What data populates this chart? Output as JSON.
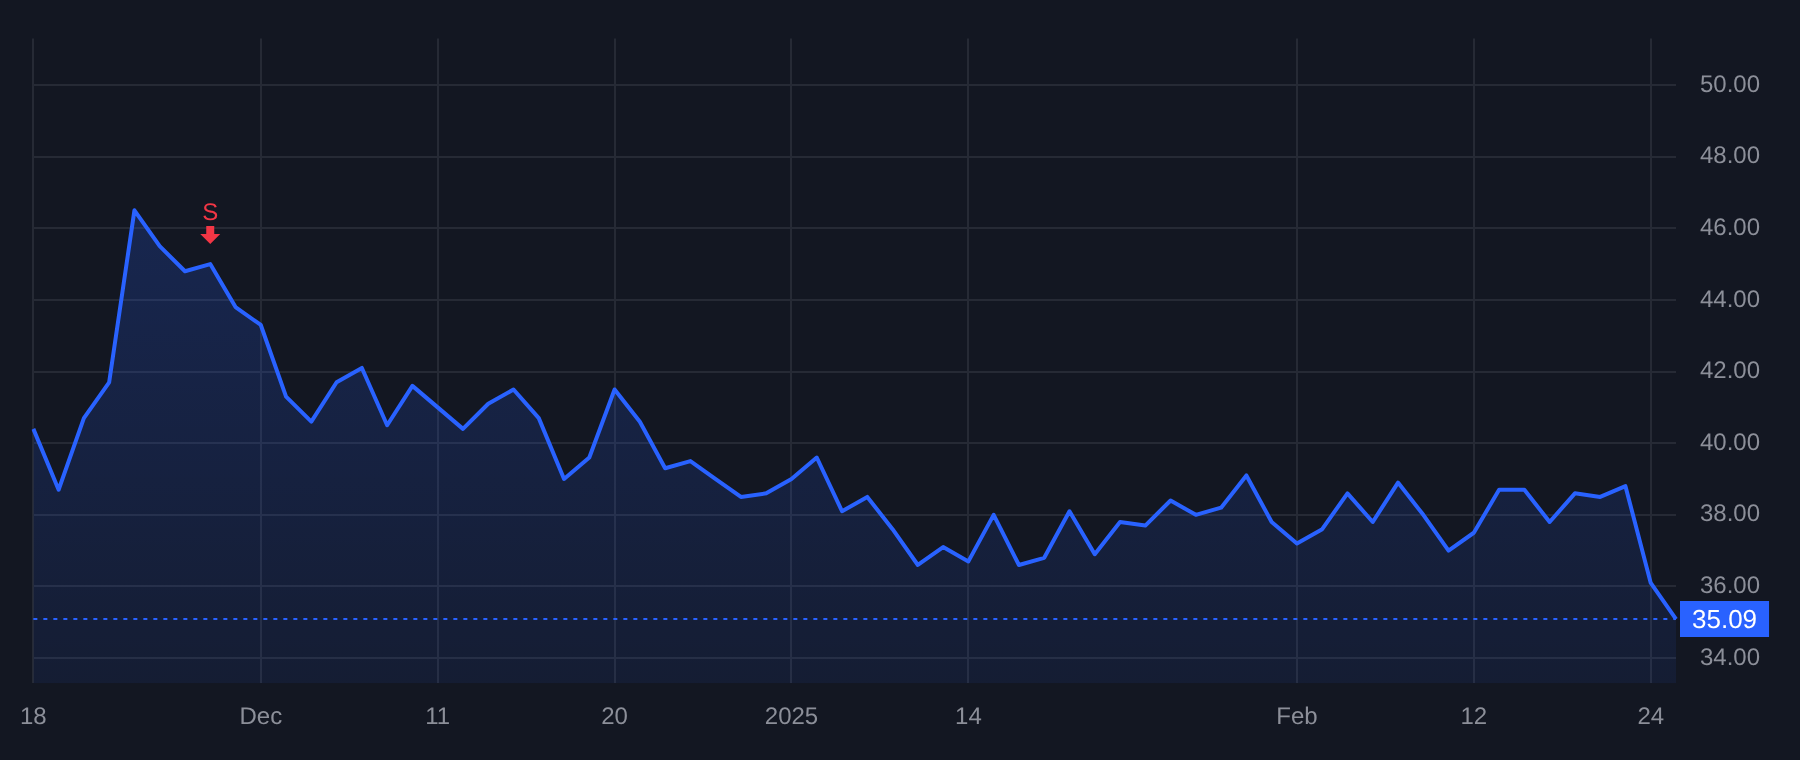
{
  "chart_data": {
    "type": "area",
    "categories": [
      "18",
      null,
      null,
      null,
      null,
      null,
      null,
      null,
      null,
      "Dec",
      null,
      null,
      null,
      null,
      null,
      null,
      "11",
      null,
      null,
      null,
      null,
      null,
      null,
      "20",
      null,
      null,
      null,
      null,
      null,
      null,
      "2025",
      null,
      null,
      null,
      null,
      null,
      null,
      "14",
      null,
      null,
      null,
      null,
      null,
      null,
      null,
      null,
      null,
      null,
      null,
      null,
      "Feb",
      null,
      null,
      null,
      null,
      null,
      null,
      "12",
      null,
      null,
      null,
      null,
      null,
      null,
      "24",
      null
    ],
    "series": [
      {
        "color": "#2962ff",
        "values": [
          40.4,
          38.7,
          40.7,
          41.7,
          46.5,
          45.5,
          44.8,
          45.0,
          43.8,
          43.3,
          41.3,
          40.6,
          41.7,
          42.1,
          40.5,
          41.6,
          41.0,
          40.4,
          41.1,
          41.5,
          40.7,
          39.0,
          39.6,
          41.5,
          40.6,
          39.3,
          39.5,
          39.0,
          38.5,
          38.6,
          39.0,
          39.6,
          38.1,
          38.5,
          37.6,
          36.6,
          37.1,
          36.7,
          38.0,
          36.6,
          36.8,
          38.1,
          36.9,
          37.8,
          37.7,
          38.4,
          38.0,
          38.2,
          39.1,
          37.8,
          37.2,
          37.6,
          38.6,
          37.8,
          38.9,
          38.0,
          37.0,
          37.5,
          38.7,
          38.7,
          37.8,
          38.6,
          38.5,
          38.8,
          36.1,
          35.09
        ]
      }
    ],
    "ylim": [
      33.3,
      51.3
    ],
    "yticks": [
      {
        "value": 34,
        "label": "34.00"
      },
      {
        "value": 36,
        "label": "36.00"
      },
      {
        "value": 38,
        "label": "38.00"
      },
      {
        "value": 40,
        "label": "40.00"
      },
      {
        "value": 42,
        "label": "42.00"
      },
      {
        "value": 44,
        "label": "44.00"
      },
      {
        "value": 46,
        "label": "46.00"
      },
      {
        "value": 48,
        "label": "48.00"
      },
      {
        "value": 50,
        "label": "50.00"
      }
    ],
    "ref_lines": [
      {
        "axis": "y",
        "value": 35.09,
        "label": "35.09",
        "color": "#2962ff",
        "line_style": "dotted"
      }
    ],
    "annotations": [
      {
        "text": "S",
        "y": 45.0
      }
    ],
    "grid": true,
    "legend": false,
    "marker": "none",
    "line_style": "solid"
  }
}
